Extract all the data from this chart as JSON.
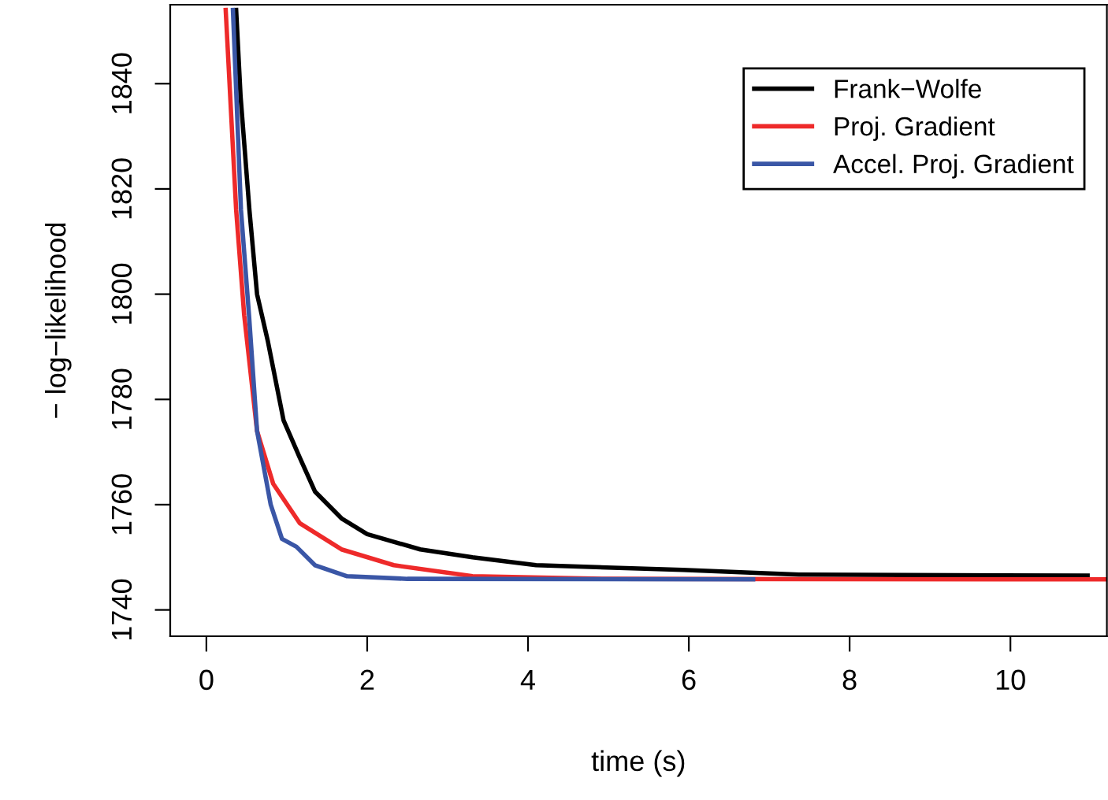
{
  "chart_data": {
    "type": "line",
    "xlabel": "time (s)",
    "ylabel": "− log−likelihood",
    "xlim": [
      -0.45,
      11.2
    ],
    "ylim": [
      1735,
      1855
    ],
    "xticks": [
      0,
      2,
      4,
      6,
      8,
      10
    ],
    "yticks": [
      1740,
      1760,
      1780,
      1800,
      1820,
      1840
    ],
    "grid": false,
    "legend": "top right",
    "marker": "none",
    "line_style": "solid",
    "series": [
      {
        "name": "Frank−Wolfe",
        "color": "#000000",
        "x": [
          0.37,
          0.425,
          0.535,
          0.63,
          0.765,
          0.96,
          1.16,
          1.35,
          1.68,
          2.0,
          2.66,
          3.31,
          4.1,
          5.92,
          7.37,
          10.96
        ],
        "values": [
          1854,
          1837.6,
          1816,
          1800,
          1791,
          1776,
          1769,
          1762.5,
          1757.4,
          1754.4,
          1751.5,
          1750,
          1748.5,
          1747.6,
          1746.7,
          1746.5
        ]
      },
      {
        "name": "Proj. Gradient",
        "color": "#ee2a2a",
        "x": [
          0.24,
          0.37,
          0.47,
          0.63,
          0.83,
          1.16,
          1.68,
          2.33,
          3.31,
          5.0,
          11.2
        ],
        "values": [
          1854,
          1816,
          1796,
          1774,
          1764,
          1756.5,
          1751.5,
          1748.5,
          1746.4,
          1745.9,
          1745.8
        ]
      },
      {
        "name": "Accel. Proj. Gradient",
        "color": "#3a56a6",
        "x": [
          0.33,
          0.43,
          0.53,
          0.63,
          0.8,
          0.94,
          1.12,
          1.35,
          1.75,
          2.5,
          6.8
        ],
        "values": [
          1854,
          1816,
          1796,
          1774,
          1760,
          1753.5,
          1752,
          1748.5,
          1746.4,
          1745.9,
          1745.8
        ]
      }
    ]
  }
}
